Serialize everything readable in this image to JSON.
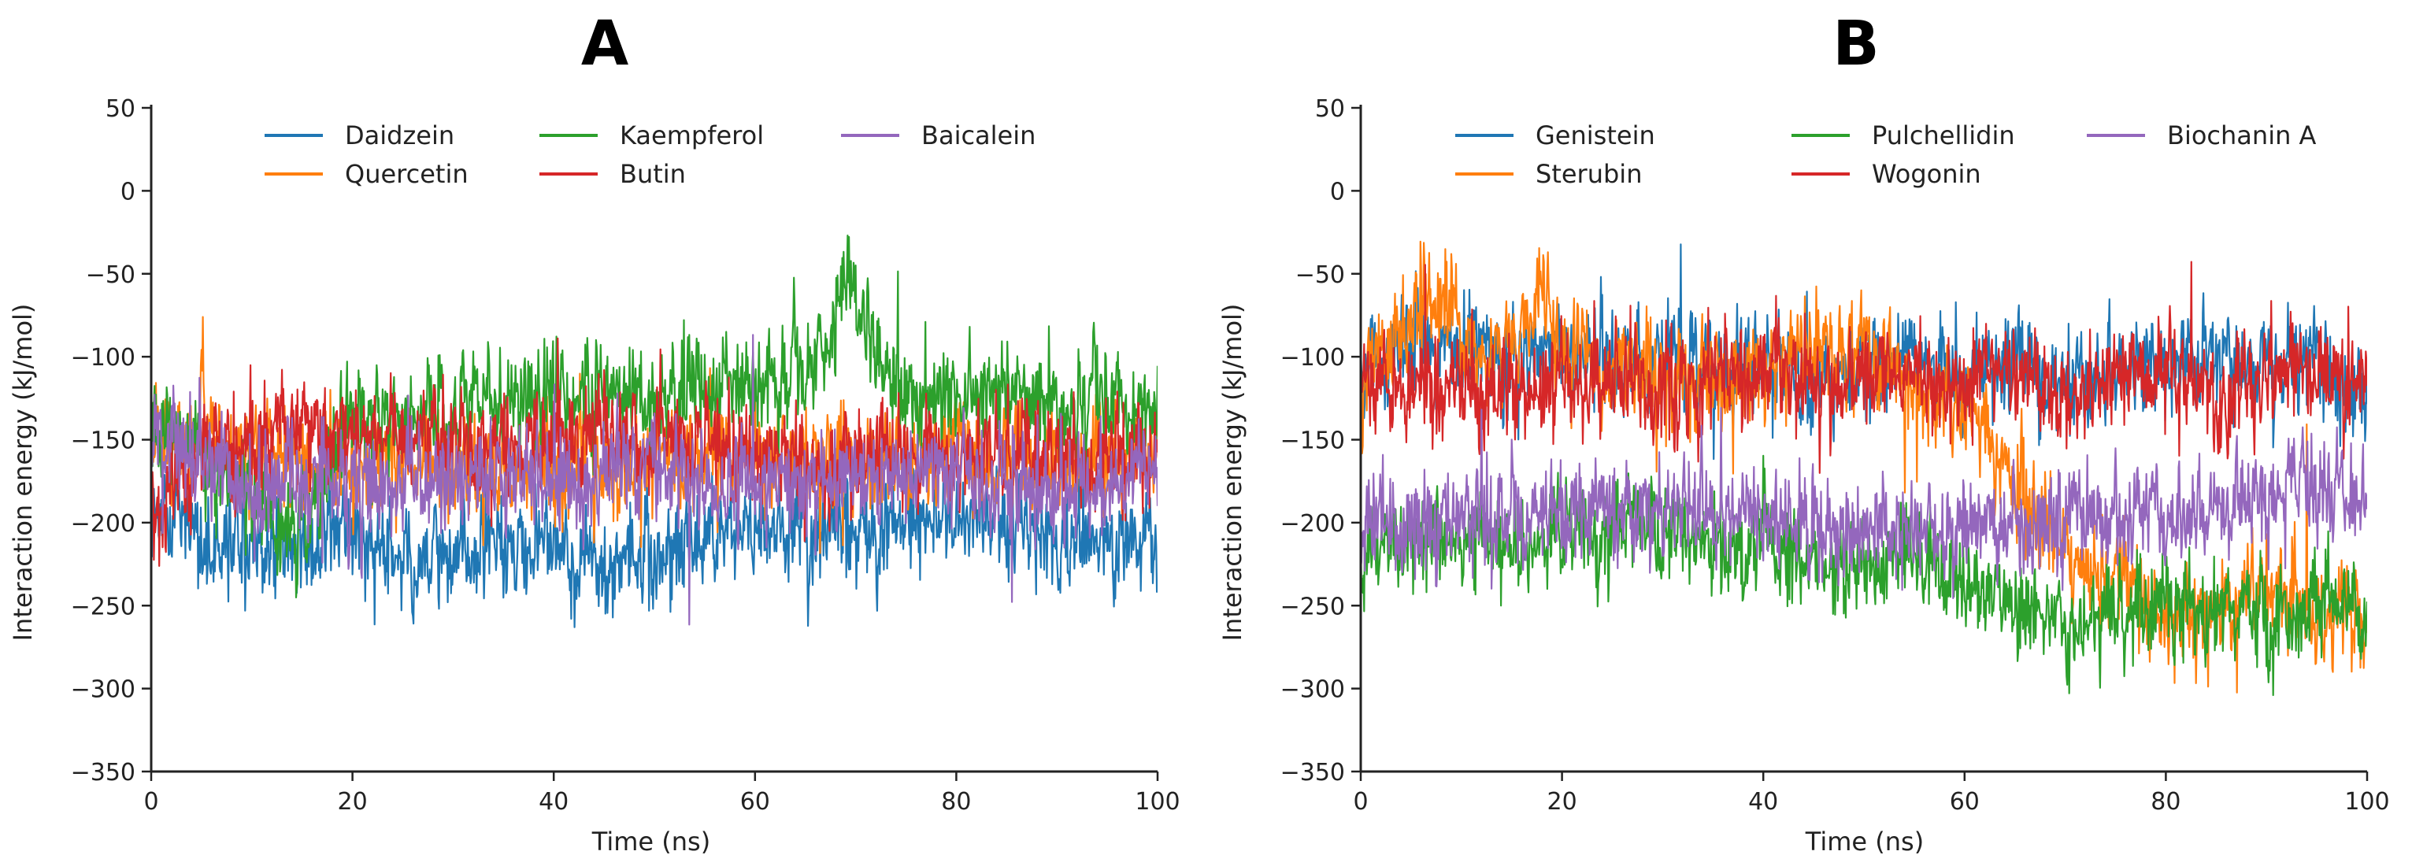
{
  "chart_data": [
    {
      "type": "line",
      "title": "A",
      "xlabel": "Time (ns)",
      "ylabel": "Interaction energy (kJ/mol)",
      "xlim": [
        0,
        100
      ],
      "ylim": [
        -350,
        50
      ],
      "xticks": [
        "0",
        "20",
        "40",
        "60",
        "80",
        "100"
      ],
      "yticks": [
        "50",
        "0",
        "−50",
        "−100",
        "−150",
        "−200",
        "−250",
        "−300",
        "−350"
      ],
      "legend": "top (3 columns)",
      "series": [
        {
          "name": "Daidzein",
          "color": "#1f77b4",
          "points": [
            [
              0,
              -200
            ],
            [
              5,
              -212
            ],
            [
              10,
              -215
            ],
            [
              15,
              -210
            ],
            [
              20,
              -212
            ],
            [
              25,
              -218
            ],
            [
              30,
              -222
            ],
            [
              35,
              -215
            ],
            [
              40,
              -212
            ],
            [
              45,
              -228
            ],
            [
              50,
              -222
            ],
            [
              55,
              -210
            ],
            [
              60,
              -205
            ],
            [
              65,
              -200
            ],
            [
              70,
              -202
            ],
            [
              75,
              -196
            ],
            [
              80,
              -198
            ],
            [
              85,
              -200
            ],
            [
              90,
              -212
            ],
            [
              95,
              -215
            ],
            [
              100,
              -210
            ]
          ]
        },
        {
          "name": "Quercetin",
          "color": "#ff7f0e",
          "points": [
            [
              0,
              -150
            ],
            [
              5,
              -145
            ],
            [
              10,
              -160
            ],
            [
              15,
              -165
            ],
            [
              20,
              -168
            ],
            [
              25,
              -162
            ],
            [
              30,
              -165
            ],
            [
              35,
              -170
            ],
            [
              40,
              -165
            ],
            [
              45,
              -162
            ],
            [
              50,
              -160
            ],
            [
              55,
              -158
            ],
            [
              60,
              -155
            ],
            [
              65,
              -160
            ],
            [
              70,
              -155
            ],
            [
              75,
              -160
            ],
            [
              80,
              -158
            ],
            [
              85,
              -162
            ],
            [
              90,
              -165
            ],
            [
              95,
              -160
            ],
            [
              100,
              -150
            ]
          ]
        },
        {
          "name": "Kaempferol",
          "color": "#2ca02c",
          "points": [
            [
              0,
              -140
            ],
            [
              5,
              -160
            ],
            [
              10,
              -190
            ],
            [
              15,
              -200
            ],
            [
              20,
              -135
            ],
            [
              25,
              -130
            ],
            [
              30,
              -130
            ],
            [
              35,
              -128
            ],
            [
              40,
              -125
            ],
            [
              45,
              -120
            ],
            [
              50,
              -125
            ],
            [
              55,
              -120
            ],
            [
              60,
              -118
            ],
            [
              65,
              -105
            ],
            [
              68,
              -80
            ],
            [
              69,
              -40
            ],
            [
              70,
              -60
            ],
            [
              72,
              -100
            ],
            [
              75,
              -120
            ],
            [
              80,
              -125
            ],
            [
              85,
              -122
            ],
            [
              90,
              -125
            ],
            [
              95,
              -128
            ],
            [
              100,
              -130
            ]
          ]
        },
        {
          "name": "Butin",
          "color": "#d62728",
          "points": [
            [
              0,
              -200
            ],
            [
              5,
              -160
            ],
            [
              10,
              -150
            ],
            [
              15,
              -145
            ],
            [
              20,
              -148
            ],
            [
              25,
              -150
            ],
            [
              30,
              -150
            ],
            [
              35,
              -155
            ],
            [
              40,
              -150
            ],
            [
              45,
              -148
            ],
            [
              50,
              -152
            ],
            [
              55,
              -150
            ],
            [
              60,
              -160
            ],
            [
              65,
              -170
            ],
            [
              70,
              -165
            ],
            [
              75,
              -160
            ],
            [
              80,
              -165
            ],
            [
              85,
              -155
            ],
            [
              90,
              -160
            ],
            [
              95,
              -158
            ],
            [
              100,
              -160
            ]
          ]
        },
        {
          "name": "Baicalein",
          "color": "#9467bd",
          "points": [
            [
              0,
              -150
            ],
            [
              5,
              -165
            ],
            [
              10,
              -180
            ],
            [
              15,
              -175
            ],
            [
              20,
              -178
            ],
            [
              25,
              -172
            ],
            [
              30,
              -175
            ],
            [
              35,
              -172
            ],
            [
              40,
              -170
            ],
            [
              45,
              -172
            ],
            [
              50,
              -168
            ],
            [
              55,
              -172
            ],
            [
              60,
              -175
            ],
            [
              65,
              -180
            ],
            [
              70,
              -178
            ],
            [
              75,
              -175
            ],
            [
              80,
              -170
            ],
            [
              85,
              -172
            ],
            [
              90,
              -185
            ],
            [
              95,
              -175
            ],
            [
              100,
              -170
            ]
          ]
        }
      ]
    },
    {
      "type": "line",
      "title": "B",
      "xlabel": "Time (ns)",
      "ylabel": "Interaction energy (kJ/mol)",
      "xlim": [
        0,
        100
      ],
      "ylim": [
        -350,
        50
      ],
      "xticks": [
        "0",
        "20",
        "40",
        "60",
        "80",
        "100"
      ],
      "yticks": [
        "50",
        "0",
        "−50",
        "−100",
        "−150",
        "−200",
        "−250",
        "−300",
        "−350"
      ],
      "legend": "top (3 columns)",
      "series": [
        {
          "name": "Genistein",
          "color": "#1f77b4",
          "points": [
            [
              0,
              -110
            ],
            [
              5,
              -90
            ],
            [
              10,
              -95
            ],
            [
              15,
              -100
            ],
            [
              20,
              -95
            ],
            [
              25,
              -100
            ],
            [
              30,
              -105
            ],
            [
              35,
              -110
            ],
            [
              40,
              -100
            ],
            [
              45,
              -115
            ],
            [
              50,
              -110
            ],
            [
              55,
              -105
            ],
            [
              60,
              -110
            ],
            [
              65,
              -105
            ],
            [
              70,
              -115
            ],
            [
              75,
              -110
            ],
            [
              80,
              -105
            ],
            [
              85,
              -100
            ],
            [
              90,
              -110
            ],
            [
              95,
              -100
            ],
            [
              100,
              -120
            ]
          ]
        },
        {
          "name": "Sterubin",
          "color": "#ff7f0e",
          "points": [
            [
              0,
              -110
            ],
            [
              5,
              -80
            ],
            [
              8,
              -60
            ],
            [
              10,
              -90
            ],
            [
              15,
              -95
            ],
            [
              18,
              -55
            ],
            [
              20,
              -100
            ],
            [
              25,
              -110
            ],
            [
              30,
              -110
            ],
            [
              35,
              -115
            ],
            [
              40,
              -110
            ],
            [
              45,
              -95
            ],
            [
              50,
              -90
            ],
            [
              55,
              -120
            ],
            [
              60,
              -130
            ],
            [
              65,
              -180
            ],
            [
              70,
              -220
            ],
            [
              75,
              -240
            ],
            [
              80,
              -260
            ],
            [
              85,
              -250
            ],
            [
              90,
              -240
            ],
            [
              95,
              -260
            ],
            [
              100,
              -250
            ]
          ]
        },
        {
          "name": "Pulchellidin",
          "color": "#2ca02c",
          "points": [
            [
              0,
              -220
            ],
            [
              5,
              -205
            ],
            [
              10,
              -210
            ],
            [
              15,
              -215
            ],
            [
              20,
              -205
            ],
            [
              25,
              -200
            ],
            [
              30,
              -205
            ],
            [
              35,
              -210
            ],
            [
              40,
              -215
            ],
            [
              45,
              -225
            ],
            [
              50,
              -230
            ],
            [
              55,
              -220
            ],
            [
              60,
              -240
            ],
            [
              65,
              -250
            ],
            [
              70,
              -260
            ],
            [
              75,
              -255
            ],
            [
              80,
              -250
            ],
            [
              85,
              -255
            ],
            [
              90,
              -260
            ],
            [
              95,
              -250
            ],
            [
              100,
              -255
            ]
          ]
        },
        {
          "name": "Wogonin",
          "color": "#d62728",
          "points": [
            [
              0,
              -110
            ],
            [
              5,
              -115
            ],
            [
              10,
              -120
            ],
            [
              15,
              -115
            ],
            [
              20,
              -118
            ],
            [
              25,
              -120
            ],
            [
              30,
              -115
            ],
            [
              35,
              -118
            ],
            [
              40,
              -110
            ],
            [
              45,
              -120
            ],
            [
              50,
              -110
            ],
            [
              55,
              -115
            ],
            [
              60,
              -120
            ],
            [
              65,
              -110
            ],
            [
              70,
              -120
            ],
            [
              75,
              -115
            ],
            [
              80,
              -110
            ],
            [
              85,
              -130
            ],
            [
              90,
              -115
            ],
            [
              95,
              -110
            ],
            [
              100,
              -120
            ]
          ]
        },
        {
          "name": "Biochanin A",
          "color": "#9467bd",
          "points": [
            [
              0,
              -200
            ],
            [
              5,
              -205
            ],
            [
              10,
              -200
            ],
            [
              15,
              -198
            ],
            [
              20,
              -195
            ],
            [
              25,
              -190
            ],
            [
              30,
              -188
            ],
            [
              35,
              -195
            ],
            [
              40,
              -200
            ],
            [
              45,
              -202
            ],
            [
              50,
              -205
            ],
            [
              55,
              -200
            ],
            [
              60,
              -205
            ],
            [
              65,
              -203
            ],
            [
              70,
              -200
            ],
            [
              75,
              -198
            ],
            [
              80,
              -195
            ],
            [
              85,
              -185
            ],
            [
              90,
              -180
            ],
            [
              95,
              -185
            ],
            [
              100,
              -190
            ]
          ]
        }
      ]
    }
  ]
}
